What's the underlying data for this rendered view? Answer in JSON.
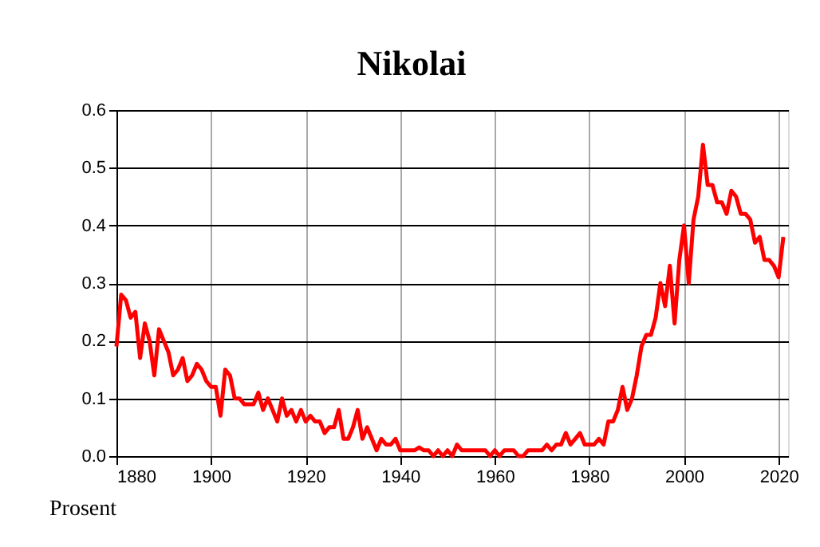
{
  "chart_data": {
    "type": "line",
    "title": "Nikolai",
    "annotations": [
      "Prosent"
    ],
    "x": [
      1880,
      1881,
      1882,
      1883,
      1884,
      1885,
      1886,
      1887,
      1888,
      1889,
      1890,
      1891,
      1892,
      1893,
      1894,
      1895,
      1896,
      1897,
      1898,
      1899,
      1900,
      1901,
      1902,
      1903,
      1904,
      1905,
      1906,
      1907,
      1908,
      1909,
      1910,
      1911,
      1912,
      1913,
      1914,
      1915,
      1916,
      1917,
      1918,
      1919,
      1920,
      1921,
      1922,
      1923,
      1924,
      1925,
      1926,
      1927,
      1928,
      1929,
      1930,
      1931,
      1932,
      1933,
      1934,
      1935,
      1936,
      1937,
      1938,
      1939,
      1940,
      1941,
      1942,
      1943,
      1944,
      1945,
      1946,
      1947,
      1948,
      1949,
      1950,
      1951,
      1952,
      1953,
      1954,
      1955,
      1956,
      1957,
      1958,
      1959,
      1960,
      1961,
      1962,
      1963,
      1964,
      1965,
      1966,
      1967,
      1968,
      1969,
      1970,
      1971,
      1972,
      1973,
      1974,
      1975,
      1976,
      1977,
      1978,
      1979,
      1980,
      1981,
      1982,
      1983,
      1984,
      1985,
      1986,
      1987,
      1988,
      1989,
      1990,
      1991,
      1992,
      1993,
      1994,
      1995,
      1996,
      1997,
      1998,
      1999,
      2000,
      2001,
      2002,
      2003,
      2004,
      2005,
      2006,
      2007,
      2008,
      2009,
      2010,
      2011,
      2012,
      2013,
      2014,
      2015,
      2016,
      2017,
      2018,
      2019,
      2020,
      2021
    ],
    "series": [
      {
        "color": "#ff0000",
        "values": [
          0.19,
          0.28,
          0.27,
          0.24,
          0.25,
          0.17,
          0.23,
          0.2,
          0.14,
          0.22,
          0.2,
          0.18,
          0.14,
          0.15,
          0.17,
          0.13,
          0.14,
          0.16,
          0.15,
          0.13,
          0.12,
          0.12,
          0.07,
          0.15,
          0.14,
          0.1,
          0.1,
          0.09,
          0.09,
          0.09,
          0.11,
          0.08,
          0.1,
          0.08,
          0.06,
          0.1,
          0.07,
          0.08,
          0.06,
          0.08,
          0.06,
          0.07,
          0.06,
          0.06,
          0.04,
          0.05,
          0.05,
          0.08,
          0.03,
          0.03,
          0.05,
          0.08,
          0.03,
          0.05,
          0.03,
          0.01,
          0.03,
          0.02,
          0.02,
          0.03,
          0.01,
          0.01,
          0.01,
          0.01,
          0.015,
          0.01,
          0.01,
          0.0,
          0.01,
          0.0,
          0.01,
          0.0,
          0.02,
          0.01,
          0.01,
          0.01,
          0.01,
          0.01,
          0.01,
          0.0,
          0.01,
          0.0,
          0.01,
          0.01,
          0.01,
          0.0,
          0.0,
          0.01,
          0.01,
          0.01,
          0.01,
          0.02,
          0.01,
          0.02,
          0.02,
          0.04,
          0.02,
          0.03,
          0.04,
          0.02,
          0.02,
          0.02,
          0.03,
          0.02,
          0.06,
          0.06,
          0.08,
          0.12,
          0.08,
          0.1,
          0.14,
          0.19,
          0.21,
          0.21,
          0.24,
          0.3,
          0.26,
          0.33,
          0.23,
          0.34,
          0.4,
          0.3,
          0.41,
          0.45,
          0.54,
          0.47,
          0.47,
          0.44,
          0.44,
          0.42,
          0.46,
          0.45,
          0.42,
          0.42,
          0.41,
          0.37,
          0.38,
          0.34,
          0.34,
          0.33,
          0.31,
          0.38
        ]
      }
    ],
    "xlim": [
      1880,
      2022
    ],
    "xticks": [
      1880,
      1900,
      1920,
      1940,
      1960,
      1980,
      2000,
      2020
    ],
    "ylim": [
      0,
      0.6
    ],
    "yticks": [
      {
        "value": 0,
        "label": "0.0"
      },
      {
        "value": 0.1,
        "label": "0.1"
      },
      {
        "value": 0.2,
        "label": "0.2"
      },
      {
        "value": 0.3,
        "label": "0.3"
      },
      {
        "value": 0.4,
        "label": "0.4"
      },
      {
        "value": 0.5,
        "label": "0.5"
      },
      {
        "value": 0.6,
        "label": "0.6"
      }
    ],
    "grid": true,
    "marker": "none",
    "line_style": "solid"
  }
}
